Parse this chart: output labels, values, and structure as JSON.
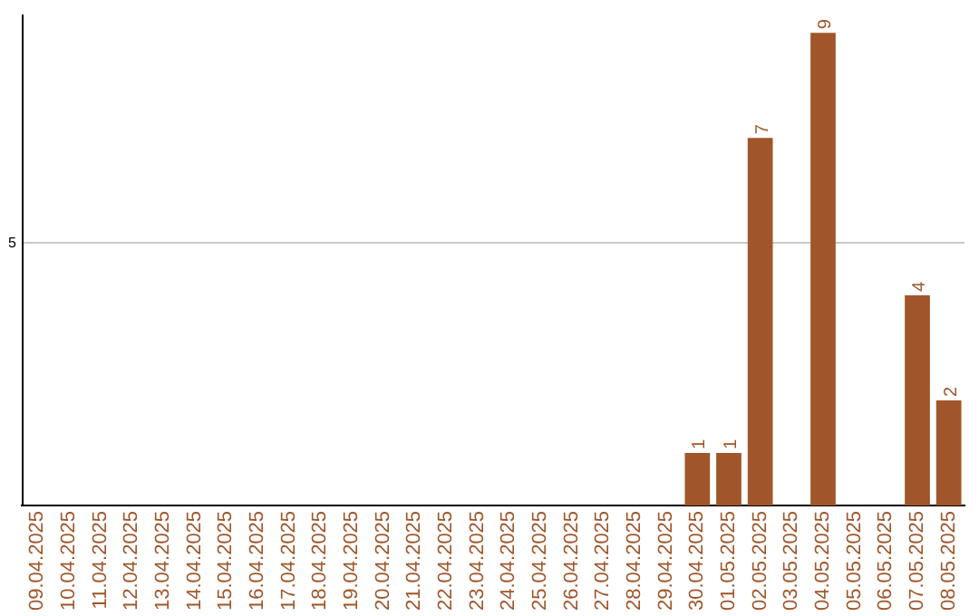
{
  "chart_data": {
    "type": "bar",
    "categories": [
      "09.04.2025",
      "10.04.2025",
      "11.04.2025",
      "12.04.2025",
      "13.04.2025",
      "14.04.2025",
      "15.04.2025",
      "16.04.2025",
      "17.04.2025",
      "18.04.2025",
      "19.04.2025",
      "20.04.2025",
      "21.04.2025",
      "22.04.2025",
      "23.04.2025",
      "24.04.2025",
      "25.04.2025",
      "26.04.2025",
      "27.04.2025",
      "28.04.2025",
      "29.04.2025",
      "30.04.2025",
      "01.05.2025",
      "02.05.2025",
      "03.05.2025",
      "04.05.2025",
      "05.05.2025",
      "06.05.2025",
      "07.05.2025",
      "08.05.2025"
    ],
    "values": [
      null,
      null,
      null,
      null,
      null,
      null,
      null,
      null,
      null,
      null,
      null,
      null,
      null,
      null,
      null,
      null,
      null,
      null,
      null,
      null,
      null,
      1,
      1,
      7,
      null,
      9,
      null,
      null,
      4,
      2
    ],
    "value_labels": [
      null,
      null,
      null,
      null,
      null,
      null,
      null,
      null,
      null,
      null,
      null,
      null,
      null,
      null,
      null,
      null,
      null,
      null,
      null,
      null,
      null,
      "1",
      "1",
      "7",
      null,
      "9",
      null,
      null,
      "4",
      "2"
    ],
    "color": "#a0562a",
    "ylim": [
      0,
      9.35
    ],
    "ref_lines": [
      {
        "axis": "y",
        "value": 5,
        "label": "5",
        "color": "#c8c8c8"
      }
    ]
  }
}
